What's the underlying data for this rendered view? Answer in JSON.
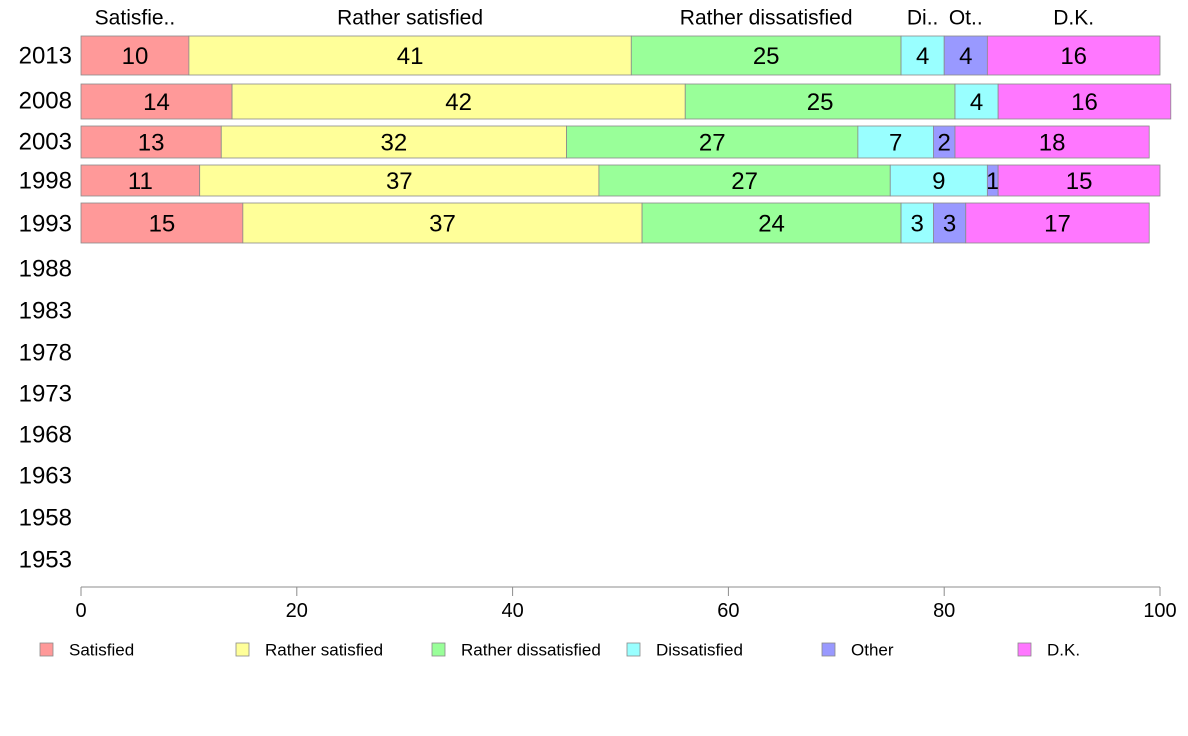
{
  "chart_data": {
    "type": "bar",
    "orientation": "horizontal",
    "stacked": true,
    "categories": [
      "2013",
      "2008",
      "2003",
      "1998",
      "1993",
      "1988",
      "1983",
      "1978",
      "1973",
      "1968",
      "1963",
      "1958",
      "1953"
    ],
    "series": [
      {
        "name": "Satisfied",
        "color": "#ff9999",
        "values": [
          10,
          14,
          13,
          11,
          15,
          null,
          null,
          null,
          null,
          null,
          null,
          null,
          null
        ]
      },
      {
        "name": "Rather satisfied",
        "color": "#ffff99",
        "values": [
          41,
          42,
          32,
          37,
          37,
          null,
          null,
          null,
          null,
          null,
          null,
          null,
          null
        ]
      },
      {
        "name": "Rather dissatisfied",
        "color": "#99ff99",
        "values": [
          25,
          25,
          27,
          27,
          24,
          null,
          null,
          null,
          null,
          null,
          null,
          null,
          null
        ]
      },
      {
        "name": "Dissatisfied",
        "color": "#99ffff",
        "values": [
          4,
          4,
          7,
          9,
          3,
          null,
          null,
          null,
          null,
          null,
          null,
          null,
          null
        ]
      },
      {
        "name": "Other",
        "color": "#9999ff",
        "values": [
          4,
          0,
          2,
          1,
          3,
          null,
          null,
          null,
          null,
          null,
          null,
          null,
          null
        ]
      },
      {
        "name": "D.K.",
        "color": "#ff77ff",
        "values": [
          16,
          16,
          18,
          15,
          17,
          null,
          null,
          null,
          null,
          null,
          null,
          null,
          null
        ]
      }
    ],
    "top_labels": [
      "Satisfie..",
      "Rather satisfied",
      "Rather dissatisfied",
      "Di..",
      "Ot..",
      "D.K."
    ],
    "xlim": [
      0,
      100
    ],
    "xticks": [
      0,
      20,
      40,
      60,
      80,
      100
    ],
    "grid": false,
    "legend_position": "bottom",
    "title": "",
    "xlabel": "",
    "ylabel": ""
  }
}
